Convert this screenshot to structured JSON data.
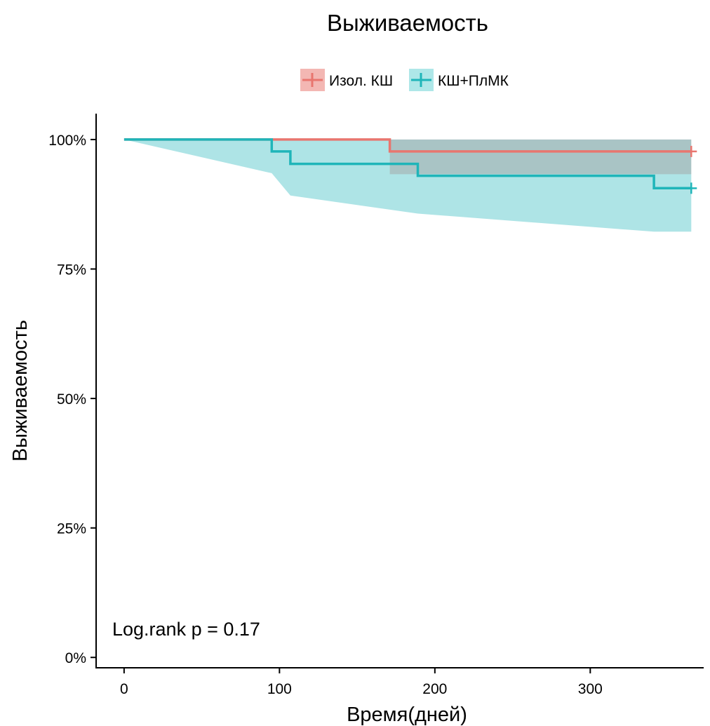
{
  "chart_data": {
    "type": "line",
    "subtype": "kaplan-meier step curves with confidence bands",
    "title": "Выживаемость",
    "xlabel": "Время(дней)",
    "ylabel": "Выживаемость",
    "xlim": [
      -18,
      373
    ],
    "ylim": [
      -0.02,
      1.05
    ],
    "x_ticks": [
      0,
      100,
      200,
      300
    ],
    "y_ticks": [
      0,
      0.25,
      0.5,
      0.75,
      1.0
    ],
    "y_tick_labels": [
      "0%",
      "25%",
      "50%",
      "75%",
      "100%"
    ],
    "grid": false,
    "legend_position": "top",
    "annotation": "Log.rank p =  0.17",
    "series": [
      {
        "name": "Изол. КШ",
        "color": "#e8766f",
        "band_color": "#f3b7b3",
        "steps": [
          [
            0,
            1.0
          ],
          [
            171,
            0.977
          ],
          [
            365,
            0.977
          ]
        ],
        "ci_upper": [
          [
            0,
            1.0
          ],
          [
            365,
            1.0
          ]
        ],
        "ci_lower": [
          [
            0,
            1.0
          ],
          [
            171,
            1.0
          ],
          [
            171,
            0.933
          ],
          [
            365,
            0.933
          ]
        ],
        "censor_marks": [
          [
            365,
            0.977
          ]
        ]
      },
      {
        "name": "КШ+ПлМК",
        "color": "#1fb5b9",
        "band_color": "#aee7e8",
        "steps": [
          [
            0,
            1.0
          ],
          [
            95,
            0.977
          ],
          [
            107,
            0.953
          ],
          [
            189,
            0.93
          ],
          [
            341,
            0.906
          ],
          [
            365,
            0.906
          ]
        ],
        "ci_upper": [
          [
            0,
            1.0
          ],
          [
            365,
            1.0
          ]
        ],
        "ci_lower": [
          [
            0,
            1.0
          ],
          [
            95,
            0.935
          ],
          [
            107,
            0.892
          ],
          [
            189,
            0.857
          ],
          [
            341,
            0.822
          ],
          [
            365,
            0.822
          ]
        ],
        "censor_marks": [
          [
            365,
            0.906
          ]
        ]
      }
    ]
  }
}
